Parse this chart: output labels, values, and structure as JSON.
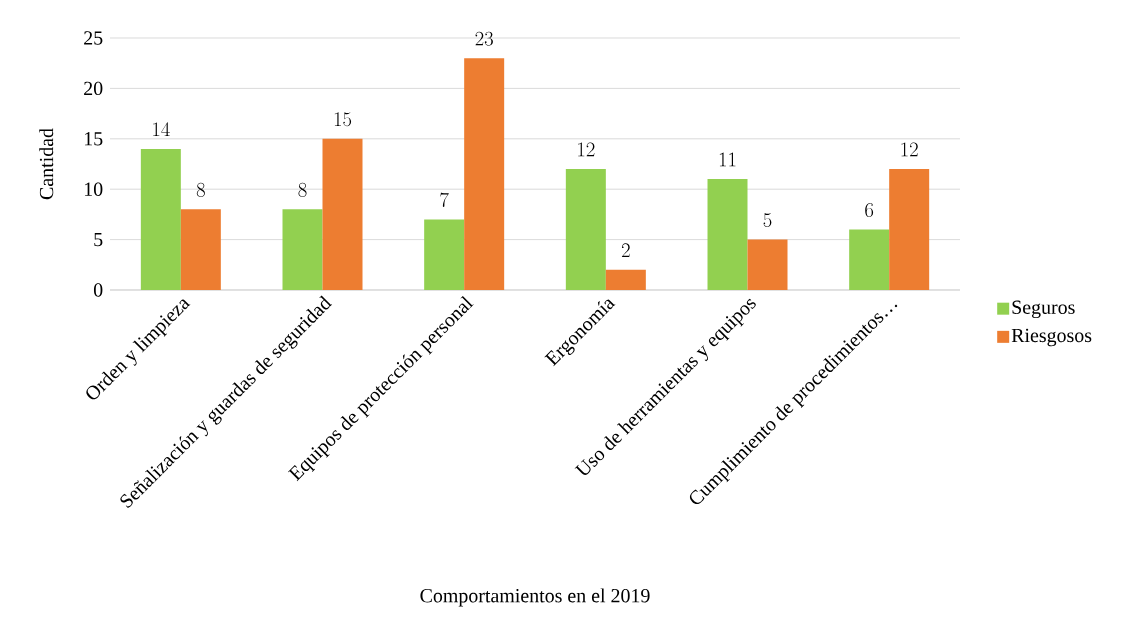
{
  "chart_data": {
    "type": "bar",
    "xlabel": "Comportamientos en el 2019",
    "ylabel": "Cantidad",
    "categories": [
      "Orden y limpieza",
      "Señalización y guardas de seguridad",
      "Equipos de protección personal",
      "Ergonomía",
      "Uso de herramientas y equipos",
      "Cumplimiento de procedimientos…"
    ],
    "series": [
      {
        "name": "Seguros",
        "color": "#92d050",
        "values": [
          14,
          8,
          7,
          12,
          11,
          6
        ]
      },
      {
        "name": "Riesgosos",
        "color": "#ed7d31",
        "values": [
          8,
          15,
          23,
          2,
          5,
          12
        ]
      }
    ],
    "ylim": [
      0,
      25
    ],
    "yticks": [
      0,
      5,
      10,
      15,
      20,
      25
    ],
    "grid": "y",
    "legend": "right",
    "data_labels": true
  }
}
